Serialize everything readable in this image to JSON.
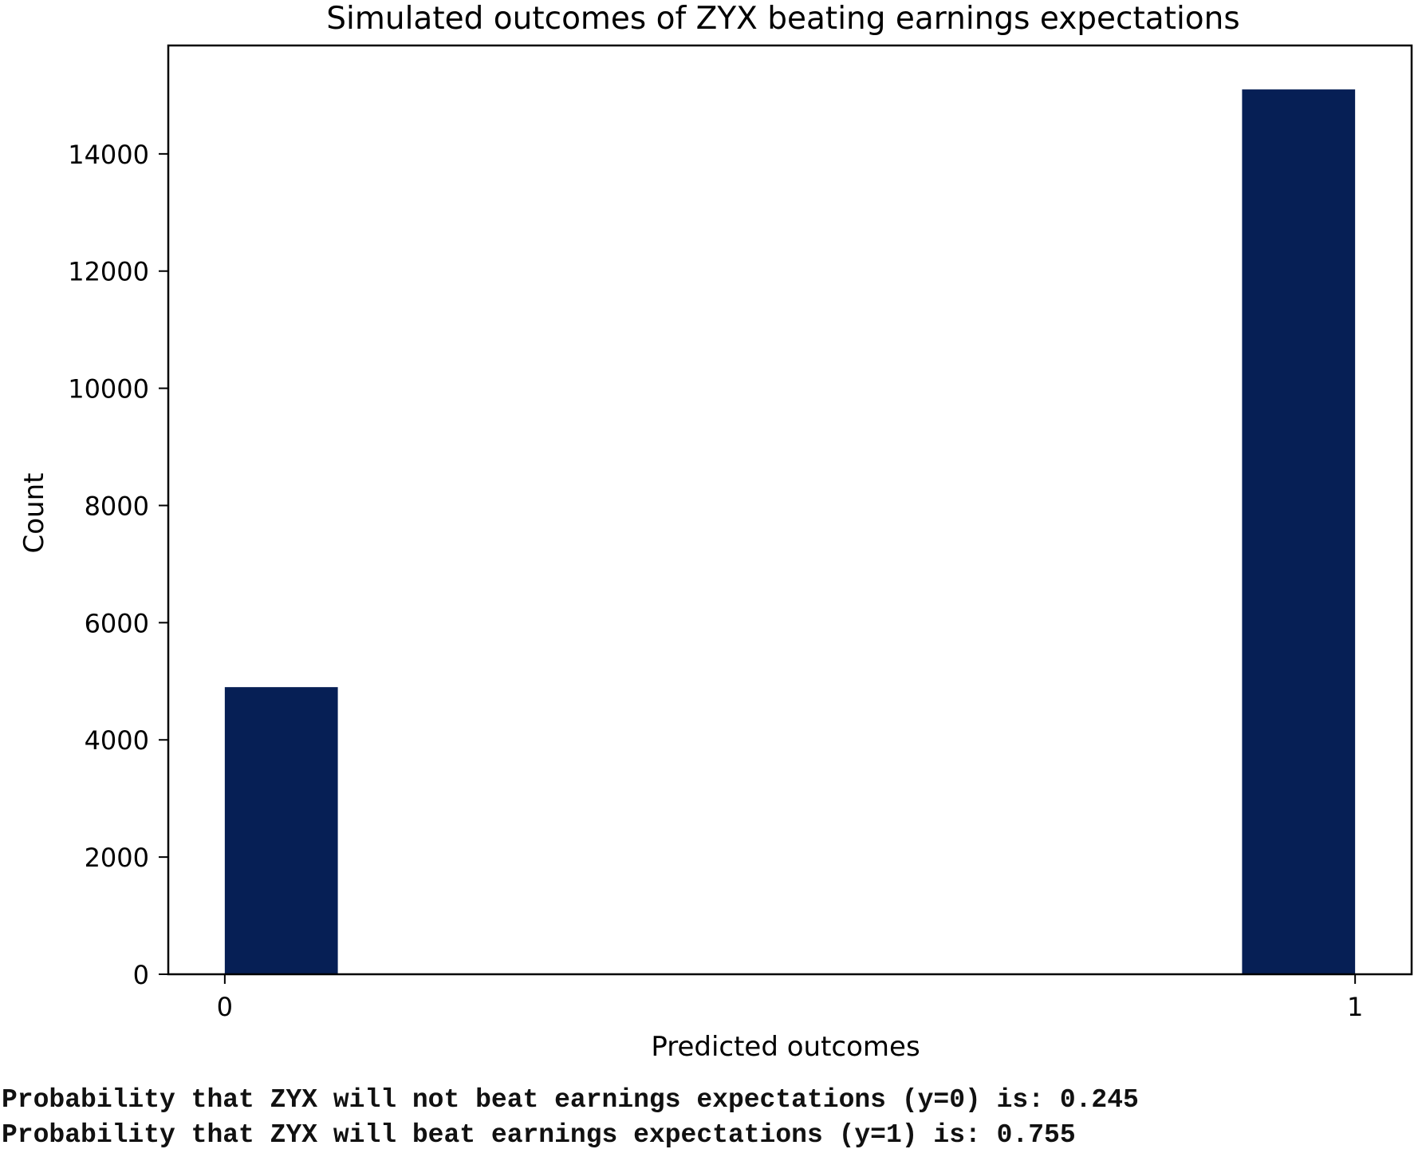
{
  "chart_data": {
    "type": "bar",
    "title": "Simulated outcomes of ZYX beating earnings expectations",
    "xlabel": "Predicted outcomes",
    "ylabel": "Count",
    "categories": [
      "0",
      "1"
    ],
    "x": [
      0,
      1
    ],
    "values": [
      4900,
      15100
    ],
    "ylim": [
      0,
      15850
    ],
    "xlim": [
      -0.05,
      1.05
    ],
    "yticks": [
      0,
      2000,
      4000,
      6000,
      8000,
      10000,
      12000,
      14000
    ],
    "xticks": [
      0,
      1
    ],
    "bar_color": "#061f55",
    "grid": false,
    "legend": "none"
  },
  "output_lines": [
    "Probability that ZYX will not beat earnings expectations (y=0) is: 0.245",
    "Probability that ZYX will beat earnings expectations (y=1) is: 0.755"
  ]
}
